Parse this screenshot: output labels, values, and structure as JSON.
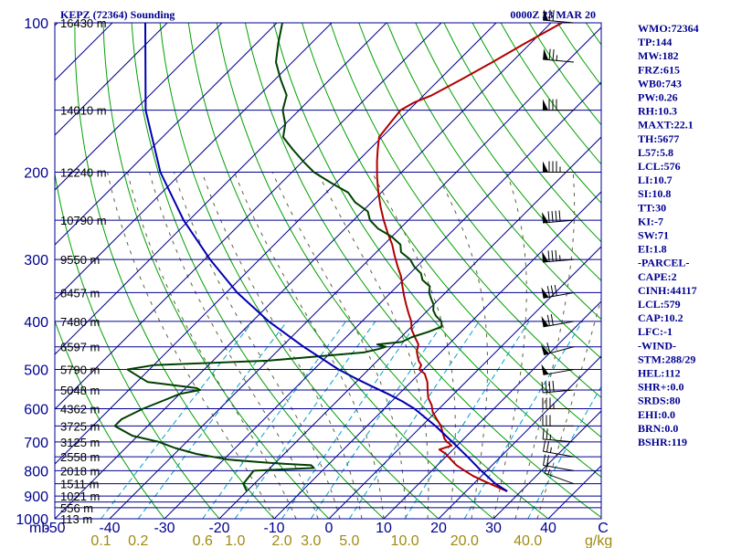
{
  "header": {
    "station": "KEPZ (72364) Sounding",
    "time": "0000Z 23 MAR 20"
  },
  "chart_data": {
    "type": "line",
    "title": "KEPZ (72364) Sounding",
    "subtitle": "0000Z 23 MAR 20",
    "xlabel": "C",
    "mixing_ratio_unit": "g/kg",
    "mb_label": "mb",
    "pressure_range": [
      1000,
      100
    ],
    "temperature_range": [
      -50,
      50
    ],
    "pressure_ticks": [
      100,
      200,
      300,
      400,
      500,
      600,
      700,
      800,
      900,
      1000
    ],
    "isobar_levels": [
      100,
      150,
      200,
      250,
      300,
      350,
      400,
      450,
      500,
      550,
      600,
      650,
      700,
      750,
      800,
      850,
      900,
      925,
      950,
      1000
    ],
    "temperature_ticks": [
      {
        "label": "-50",
        "value": -50
      },
      {
        "label": "-40",
        "value": -40
      },
      {
        "label": "-30",
        "value": -30
      },
      {
        "label": "-20",
        "value": -20
      },
      {
        "label": "-10",
        "value": -10
      },
      {
        "label": "0",
        "value": 0
      },
      {
        "label": "10",
        "value": 10
      },
      {
        "label": "20",
        "value": 20
      },
      {
        "label": "30",
        "value": 30
      },
      {
        "label": "40",
        "value": 40
      }
    ],
    "height_labels": [
      {
        "p": 100,
        "label": "16430 m"
      },
      {
        "p": 150,
        "label": "14010 m"
      },
      {
        "p": 200,
        "label": "12240 m"
      },
      {
        "p": 250,
        "label": "10790 m"
      },
      {
        "p": 300,
        "label": "9550 m"
      },
      {
        "p": 350,
        "label": "8457 m"
      },
      {
        "p": 400,
        "label": "7480 m"
      },
      {
        "p": 450,
        "label": "6597 m"
      },
      {
        "p": 500,
        "label": "5790 m"
      },
      {
        "p": 550,
        "label": "5048 m"
      },
      {
        "p": 600,
        "label": "4362 m"
      },
      {
        "p": 650,
        "label": "3725 m"
      },
      {
        "p": 700,
        "label": "3125 m"
      },
      {
        "p": 750,
        "label": "2558 m"
      },
      {
        "p": 800,
        "label": "2018 m"
      },
      {
        "p": 850,
        "label": "1511 m"
      },
      {
        "p": 900,
        "label": "1021 m"
      },
      {
        "p": 950,
        "label": "556 m"
      },
      {
        "p": 1000,
        "label": "113 m"
      }
    ],
    "mixing_ratio_labels": [
      {
        "label": "0.1",
        "value": 0.1
      },
      {
        "label": "0.2",
        "value": 0.2
      },
      {
        "label": "0.6",
        "value": 0.6
      },
      {
        "label": "1.0",
        "value": 1.0
      },
      {
        "label": "2.0",
        "value": 2.0
      },
      {
        "label": "3.0",
        "value": 3.0
      },
      {
        "label": "5.0",
        "value": 5.0
      },
      {
        "label": "10.0",
        "value": 10.0
      },
      {
        "label": "20.0",
        "value": 20.0
      },
      {
        "label": "40.0",
        "value": 40.0
      }
    ],
    "series": [
      {
        "kind": "temperature",
        "color": "#b00000",
        "points": [
          [
            880,
            27.5
          ],
          [
            860,
            24.5
          ],
          [
            840,
            21.5
          ],
          [
            820,
            18.5
          ],
          [
            800,
            16
          ],
          [
            780,
            13.5
          ],
          [
            760,
            11.5
          ],
          [
            740,
            9.5
          ],
          [
            725,
            7.5
          ],
          [
            712,
            9
          ],
          [
            705,
            8.2
          ],
          [
            700,
            7.5
          ],
          [
            690,
            6.5
          ],
          [
            670,
            5
          ],
          [
            650,
            3.5
          ],
          [
            630,
            1.5
          ],
          [
            610,
            -0.5
          ],
          [
            590,
            -2
          ],
          [
            570,
            -4
          ],
          [
            550,
            -5.5
          ],
          [
            530,
            -7
          ],
          [
            510,
            -9
          ],
          [
            500,
            -10.8
          ],
          [
            490,
            -11.2
          ],
          [
            480,
            -12.5
          ],
          [
            470,
            -13.5
          ],
          [
            460,
            -14.5
          ],
          [
            445,
            -15.5
          ],
          [
            430,
            -17.5
          ],
          [
            415,
            -19.5
          ],
          [
            400,
            -21
          ],
          [
            385,
            -23
          ],
          [
            370,
            -25
          ],
          [
            355,
            -27
          ],
          [
            340,
            -29
          ],
          [
            325,
            -31
          ],
          [
            310,
            -33.5
          ],
          [
            295,
            -36
          ],
          [
            280,
            -38.5
          ],
          [
            265,
            -41.5
          ],
          [
            250,
            -44.5
          ],
          [
            235,
            -47.5
          ],
          [
            220,
            -50.5
          ],
          [
            205,
            -53.5
          ],
          [
            190,
            -56.5
          ],
          [
            180,
            -58.5
          ],
          [
            170,
            -60.5
          ],
          [
            160,
            -61
          ],
          [
            150,
            -61.5
          ],
          [
            145,
            -60.5
          ],
          [
            140,
            -58.5
          ],
          [
            130,
            -56
          ],
          [
            120,
            -53.5
          ],
          [
            110,
            -51
          ],
          [
            100,
            -48
          ]
        ]
      },
      {
        "kind": "dewpoint",
        "color": "#004000",
        "points": [
          [
            880,
            -20
          ],
          [
            850,
            -22
          ],
          [
            800,
            -22.5
          ],
          [
            790,
            -12
          ],
          [
            780,
            -13
          ],
          [
            775,
            -18
          ],
          [
            770,
            -22
          ],
          [
            760,
            -29
          ],
          [
            740,
            -36
          ],
          [
            720,
            -41
          ],
          [
            700,
            -45
          ],
          [
            680,
            -51
          ],
          [
            650,
            -56
          ],
          [
            630,
            -56
          ],
          [
            600,
            -54
          ],
          [
            580,
            -52
          ],
          [
            560,
            -50
          ],
          [
            550,
            -47
          ],
          [
            545,
            -48
          ],
          [
            530,
            -58
          ],
          [
            510,
            -62
          ],
          [
            500,
            -64
          ],
          [
            490,
            -60
          ],
          [
            480,
            -40
          ],
          [
            470,
            -31
          ],
          [
            462,
            -24
          ],
          [
            455,
            -22
          ],
          [
            450,
            -21
          ],
          [
            445,
            -23
          ],
          [
            440,
            -19
          ],
          [
            430,
            -18
          ],
          [
            420,
            -16
          ],
          [
            410,
            -14.5
          ],
          [
            400,
            -15.5
          ],
          [
            390,
            -17.5
          ],
          [
            380,
            -19
          ],
          [
            370,
            -20
          ],
          [
            360,
            -21.5
          ],
          [
            350,
            -23
          ],
          [
            340,
            -24
          ],
          [
            330,
            -26.5
          ],
          [
            320,
            -28
          ],
          [
            310,
            -30.5
          ],
          [
            300,
            -32.5
          ],
          [
            290,
            -35.5
          ],
          [
            280,
            -37
          ],
          [
            270,
            -40
          ],
          [
            260,
            -44
          ],
          [
            250,
            -47
          ],
          [
            240,
            -49
          ],
          [
            230,
            -53
          ],
          [
            220,
            -56
          ],
          [
            210,
            -61
          ],
          [
            200,
            -66
          ],
          [
            190,
            -70
          ],
          [
            180,
            -74
          ],
          [
            170,
            -78
          ],
          [
            160,
            -80
          ],
          [
            150,
            -83
          ],
          [
            140,
            -85
          ],
          [
            130,
            -89
          ],
          [
            120,
            -93
          ],
          [
            110,
            -96
          ],
          [
            100,
            -99
          ]
        ]
      },
      {
        "kind": "parcel",
        "color": "#0000b0",
        "points": [
          [
            880,
            27.5
          ],
          [
            850,
            24
          ],
          [
            800,
            19
          ],
          [
            750,
            14
          ],
          [
            700,
            8.5
          ],
          [
            650,
            2.5
          ],
          [
            600,
            -4.5
          ],
          [
            580,
            -8
          ],
          [
            560,
            -12
          ],
          [
            540,
            -16.5
          ],
          [
            520,
            -21
          ],
          [
            500,
            -25.5
          ],
          [
            450,
            -36
          ],
          [
            400,
            -47
          ],
          [
            350,
            -58
          ],
          [
            300,
            -69
          ],
          [
            250,
            -81
          ],
          [
            200,
            -94
          ],
          [
            150,
            -108
          ],
          [
            100,
            -124
          ]
        ]
      }
    ],
    "wind_barbs": [
      {
        "p": 850,
        "dir": 290,
        "spd": 15
      },
      {
        "p": 800,
        "dir": 280,
        "spd": 20
      },
      {
        "p": 750,
        "dir": 280,
        "spd": 25
      },
      {
        "p": 700,
        "dir": 275,
        "spd": 25
      },
      {
        "p": 650,
        "dir": 270,
        "spd": 30
      },
      {
        "p": 600,
        "dir": 270,
        "spd": 35
      },
      {
        "p": 550,
        "dir": 265,
        "spd": 40
      },
      {
        "p": 500,
        "dir": 260,
        "spd": 50
      },
      {
        "p": 450,
        "dir": 255,
        "spd": 60
      },
      {
        "p": 400,
        "dir": 260,
        "spd": 70
      },
      {
        "p": 350,
        "dir": 260,
        "spd": 80
      },
      {
        "p": 300,
        "dir": 265,
        "spd": 85
      },
      {
        "p": 250,
        "dir": 265,
        "spd": 90
      },
      {
        "p": 200,
        "dir": 270,
        "spd": 85
      },
      {
        "p": 150,
        "dir": 270,
        "spd": 80
      },
      {
        "p": 120,
        "dir": 275,
        "spd": 75
      },
      {
        "p": 100,
        "dir": 275,
        "spd": 70
      }
    ]
  },
  "indices": [
    "WMO:72364",
    "TP:144",
    "MW:182",
    "FRZ:615",
    "WB0:743",
    "PW:0.26",
    "RH:10.3",
    "MAXT:22.1",
    "TH:5677",
    "L57:5.8",
    "LCL:576",
    "LI:10.7",
    "SI:10.8",
    "TT:30",
    "KI:-7",
    "SW:71",
    "EI:1.8",
    "-PARCEL-",
    "CAPE:2",
    "CINH:44117",
    "LCL:579",
    "CAP:10.2",
    "LFC:-1",
    "-WIND-",
    "STM:288/29",
    "HEL:112",
    "SHR+:0.0",
    "SRDS:80",
    "EHI:0.0",
    "BRN:0.0",
    "BSHR:119"
  ],
  "colors": {
    "frame": "#000090",
    "isobar": "#000090",
    "isotherm": "#000090",
    "dry_adiabat": "#00a000",
    "mixing_ratio": "#00a0c8",
    "moist_adiabat": "#606040"
  }
}
